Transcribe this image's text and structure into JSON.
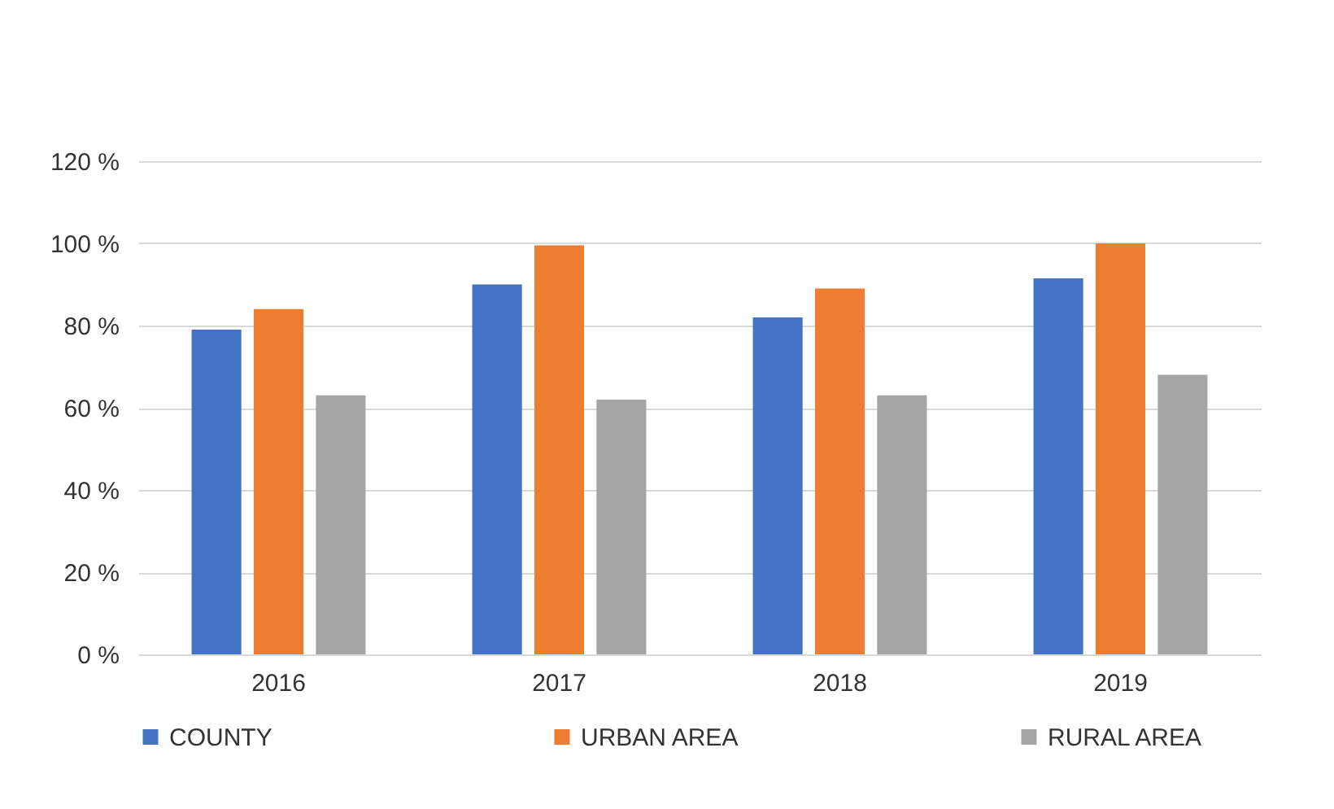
{
  "chart_data": {
    "type": "bar",
    "categories": [
      "2016",
      "2017",
      "2018",
      "2019"
    ],
    "series": [
      {
        "name": "COUNTY",
        "color": "#4472c4",
        "values": [
          79,
          90,
          82,
          91.5
        ]
      },
      {
        "name": "URBAN AREA",
        "color": "#ed7d31",
        "values": [
          84,
          99.5,
          89,
          100
        ]
      },
      {
        "name": "RURAL AREA",
        "color": "#a5a5a5",
        "values": [
          63,
          62,
          63,
          68
        ]
      }
    ],
    "ylim": [
      0,
      120
    ],
    "yticks": [
      {
        "value": 0,
        "label": "0 %"
      },
      {
        "value": 20,
        "label": "20 %"
      },
      {
        "value": 40,
        "label": "40 %"
      },
      {
        "value": 60,
        "label": "60 %"
      },
      {
        "value": 80,
        "label": "80 %"
      },
      {
        "value": 100,
        "label": "100 %"
      },
      {
        "value": 120,
        "label": "120 %"
      }
    ],
    "grid": "y",
    "legend": "bottom"
  }
}
